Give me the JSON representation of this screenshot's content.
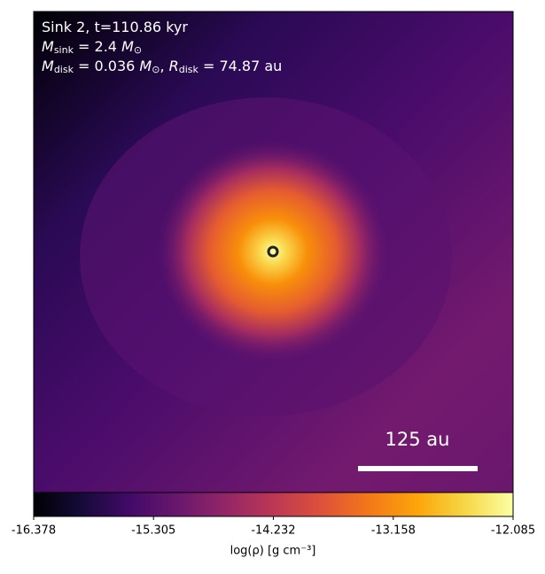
{
  "chart_data": {
    "type": "heatmap",
    "annotations": [
      {
        "parts": [
          {
            "text": "Sink 2, t=110.86 kyr"
          }
        ]
      },
      {
        "parts": [
          {
            "text": "M",
            "italic": true
          },
          {
            "text": "sink",
            "sub": true
          },
          {
            "text": " = 2.4 "
          },
          {
            "text": "M",
            "italic": true
          },
          {
            "text": "⊙",
            "sub": true
          }
        ]
      },
      {
        "parts": [
          {
            "text": "M",
            "italic": true
          },
          {
            "text": "disk",
            "sub": true
          },
          {
            "text": " = 0.036 "
          },
          {
            "text": "M",
            "italic": true
          },
          {
            "text": "⊙",
            "sub": true
          },
          {
            "text": ", "
          },
          {
            "text": "R",
            "italic": true
          },
          {
            "text": "disk",
            "sub": true
          },
          {
            "text": " = 74.87 au"
          }
        ]
      }
    ],
    "scale_bar": "125 au",
    "colorbar": {
      "label": "log(ρ) [g cm⁻³]",
      "clim": [
        -16.378,
        -12.085
      ],
      "ticks": [
        -16.378,
        -15.305,
        -14.232,
        -13.158,
        -12.085
      ],
      "colormap": "inferno"
    }
  }
}
